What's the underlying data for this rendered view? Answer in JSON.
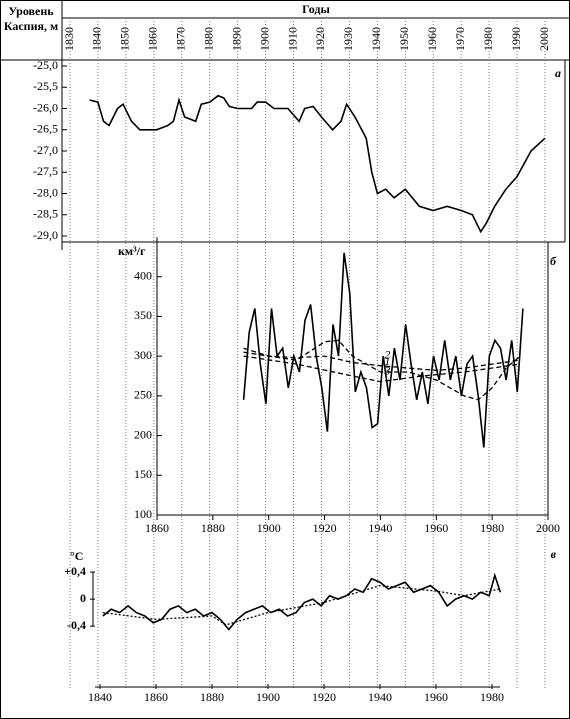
{
  "chart_data": [
    {
      "type": "line",
      "annotation": "а",
      "xlabel": "Годы",
      "ylabel": "Уровень Каспия, м",
      "xlim": [
        1830,
        2000
      ],
      "xticks": [
        1830,
        1840,
        1850,
        1860,
        1870,
        1880,
        1890,
        1900,
        1910,
        1920,
        1930,
        1940,
        1950,
        1960,
        1970,
        1980,
        1990,
        2000
      ],
      "ylim": [
        -29,
        -25
      ],
      "yticks": [
        {
          "value": -25,
          "label": "-25,0"
        },
        {
          "value": -25.5,
          "label": "-25,5"
        },
        {
          "value": -26,
          "label": "-26,0"
        },
        {
          "value": -26.5,
          "label": "-26,5"
        },
        {
          "value": -27,
          "label": "-27,0"
        },
        {
          "value": -27.5,
          "label": "-27,5"
        },
        {
          "value": -28,
          "label": "-28,0"
        },
        {
          "value": -28.5,
          "label": "-28,5"
        },
        {
          "value": -29,
          "label": "-29,0"
        }
      ],
      "series": [
        {
          "color": "#000000",
          "dash": false,
          "x": [
            1837,
            1840,
            1842,
            1844,
            1847,
            1849,
            1852,
            1855,
            1858,
            1861,
            1865,
            1867,
            1869,
            1871,
            1875,
            1877,
            1880,
            1883,
            1885,
            1887,
            1890,
            1895,
            1897,
            1900,
            1903,
            1908,
            1912,
            1914,
            1917,
            1920,
            1924,
            1927,
            1929,
            1932,
            1936,
            1938,
            1940,
            1943,
            1946,
            1950,
            1955,
            1960,
            1965,
            1970,
            1974,
            1977,
            1979,
            1982,
            1986,
            1990,
            1995,
            2000
          ],
          "values": [
            -25.8,
            -25.85,
            -26.3,
            -26.4,
            -26.0,
            -25.9,
            -26.3,
            -26.5,
            -26.5,
            -26.5,
            -26.4,
            -26.3,
            -25.8,
            -26.2,
            -26.3,
            -25.9,
            -25.85,
            -25.7,
            -25.75,
            -25.95,
            -26.0,
            -26.0,
            -25.85,
            -25.85,
            -26.0,
            -26.0,
            -26.3,
            -26.0,
            -25.95,
            -26.2,
            -26.5,
            -26.3,
            -25.9,
            -26.2,
            -26.7,
            -27.5,
            -28.0,
            -27.9,
            -28.1,
            -27.9,
            -28.3,
            -28.4,
            -28.3,
            -28.4,
            -28.5,
            -28.9,
            -28.7,
            -28.3,
            -27.9,
            -27.6,
            -27.0,
            -26.7
          ]
        }
      ]
    },
    {
      "type": "line",
      "annotation": "б",
      "ylabel": "км³/г",
      "xlim": [
        1860,
        2000
      ],
      "xticks": [
        1860,
        1880,
        1900,
        1920,
        1940,
        1960,
        1980,
        2000
      ],
      "ylim": [
        100,
        450
      ],
      "yticks": [
        100,
        150,
        200,
        250,
        300,
        350,
        400
      ],
      "series": [
        {
          "color": "#000000",
          "dash": false,
          "x": [
            1891,
            1893,
            1895,
            1897,
            1899,
            1901,
            1903,
            1905,
            1907,
            1909,
            1911,
            1913,
            1915,
            1917,
            1919,
            1921,
            1923,
            1925,
            1927,
            1929,
            1931,
            1933,
            1935,
            1937,
            1939,
            1941,
            1943,
            1945,
            1947,
            1949,
            1951,
            1953,
            1955,
            1957,
            1959,
            1961,
            1963,
            1965,
            1967,
            1969,
            1971,
            1973,
            1975,
            1977,
            1979,
            1981,
            1983,
            1985,
            1987,
            1989,
            1991
          ],
          "values": [
            245,
            330,
            360,
            290,
            240,
            360,
            300,
            310,
            260,
            300,
            280,
            345,
            365,
            300,
            260,
            205,
            340,
            300,
            430,
            380,
            255,
            280,
            260,
            210,
            215,
            300,
            250,
            310,
            270,
            340,
            290,
            245,
            280,
            240,
            300,
            270,
            320,
            270,
            300,
            250,
            290,
            300,
            250,
            185,
            300,
            320,
            310,
            270,
            320,
            255,
            360
          ]
        },
        {
          "name": "1",
          "color": "#000000",
          "dash": true,
          "x": [
            1891,
            1900,
            1910,
            1920,
            1925,
            1930,
            1935,
            1940,
            1950,
            1960,
            1970,
            1975,
            1980,
            1985,
            1990
          ],
          "values": [
            305,
            300,
            295,
            318,
            320,
            300,
            290,
            280,
            280,
            270,
            250,
            245,
            260,
            285,
            300
          ]
        },
        {
          "name": "2",
          "color": "#000000",
          "dash": true,
          "x": [
            1891,
            1900,
            1910,
            1920,
            1930,
            1940,
            1950,
            1960,
            1970,
            1980,
            1990
          ],
          "values": [
            310,
            300,
            298,
            300,
            292,
            288,
            285,
            282,
            285,
            290,
            295
          ]
        },
        {
          "name": "3",
          "color": "#000000",
          "dash": true,
          "x": [
            1891,
            1910,
            1930,
            1940,
            1955,
            1970,
            1990
          ],
          "values": [
            300,
            290,
            275,
            268,
            275,
            280,
            290
          ]
        }
      ]
    },
    {
      "type": "line",
      "annotation": "в",
      "ylabel": "°C",
      "xlim": [
        1840,
        1980
      ],
      "xticks": [
        1840,
        1860,
        1880,
        1900,
        1920,
        1940,
        1960,
        1980
      ],
      "ylim": [
        -1.3,
        0.8
      ],
      "yticks": [
        {
          "value": 0.4,
          "label": "+0,4"
        },
        0,
        {
          "value": -0.4,
          "label": "-0,4"
        }
      ],
      "series": [
        {
          "color": "#000000",
          "dash": false,
          "x": [
            1841,
            1844,
            1847,
            1850,
            1853,
            1856,
            1859,
            1862,
            1865,
            1868,
            1871,
            1874,
            1877,
            1880,
            1883,
            1886,
            1889,
            1892,
            1895,
            1898,
            1901,
            1904,
            1907,
            1910,
            1913,
            1916,
            1919,
            1922,
            1925,
            1928,
            1931,
            1934,
            1937,
            1940,
            1943,
            1946,
            1949,
            1952,
            1955,
            1958,
            1961,
            1964,
            1967,
            1970,
            1973,
            1976,
            1979,
            1981,
            1983
          ],
          "values": [
            -0.25,
            -0.15,
            -0.2,
            -0.1,
            -0.2,
            -0.25,
            -0.35,
            -0.3,
            -0.15,
            -0.1,
            -0.2,
            -0.15,
            -0.25,
            -0.2,
            -0.3,
            -0.45,
            -0.3,
            -0.2,
            -0.15,
            -0.1,
            -0.2,
            -0.15,
            -0.25,
            -0.2,
            -0.05,
            0.0,
            -0.1,
            0.05,
            0.0,
            0.05,
            0.15,
            0.1,
            0.3,
            0.25,
            0.15,
            0.2,
            0.25,
            0.1,
            0.15,
            0.2,
            0.1,
            -0.1,
            0.0,
            0.05,
            0.0,
            0.1,
            0.05,
            0.35,
            0.1
          ]
        },
        {
          "color": "#000000",
          "dash": true,
          "x": [
            1841,
            1860,
            1880,
            1885,
            1900,
            1920,
            1940,
            1960,
            1970,
            1983
          ],
          "values": [
            -0.2,
            -0.3,
            -0.25,
            -0.38,
            -0.2,
            -0.05,
            0.2,
            0.12,
            0.05,
            0.15
          ]
        }
      ]
    }
  ]
}
